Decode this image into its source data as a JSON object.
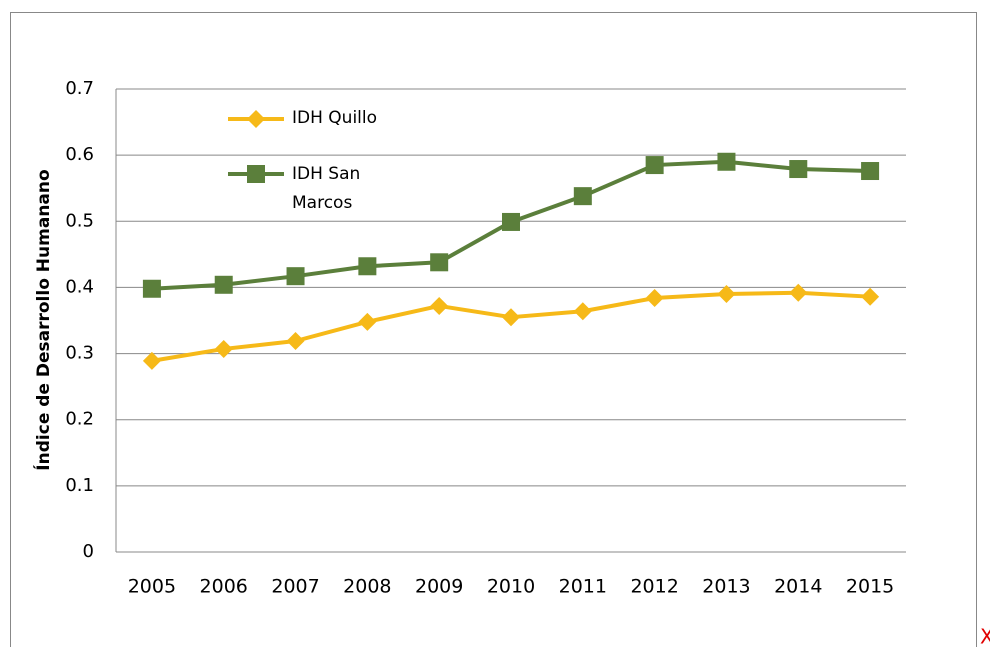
{
  "chart_data": {
    "type": "line",
    "y_label": "Índice de Desarrollo Humanano",
    "categories": [
      "2005",
      "2006",
      "2007",
      "2008",
      "2009",
      "2010",
      "2011",
      "2012",
      "2013",
      "2014",
      "2015"
    ],
    "series": [
      {
        "name": "IDH Quillo",
        "color": "#f6b918",
        "marker": "diamond",
        "values": [
          0.289,
          0.307,
          0.319,
          0.348,
          0.372,
          0.355,
          0.364,
          0.384,
          0.39,
          0.392,
          0.386
        ]
      },
      {
        "name": "IDH San Marcos",
        "color": "#5b7f3b",
        "marker": "square",
        "values": [
          0.398,
          0.404,
          0.417,
          0.432,
          0.438,
          0.499,
          0.538,
          0.585,
          0.59,
          0.579,
          0.576
        ]
      }
    ],
    "ylim": [
      0,
      0.7
    ],
    "yticks": [
      0,
      0.1,
      0.2,
      0.3,
      0.4,
      0.5,
      0.6,
      0.7
    ],
    "grid": true
  },
  "corner_mark": "X"
}
